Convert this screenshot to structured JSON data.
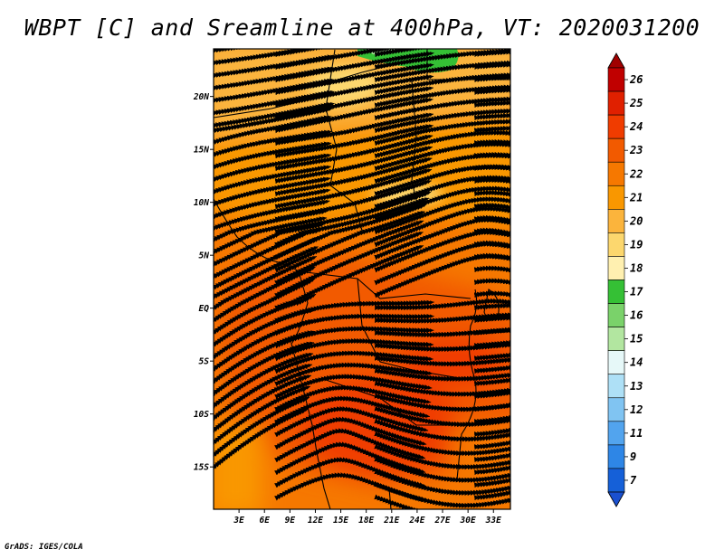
{
  "title": "WBPT [C] and Sreamline at 400hPa, VT: 2020031200",
  "credit": "GrADS: IGES/COLA",
  "map": {
    "lon_range": [
      0,
      35
    ],
    "lat_range": [
      -19,
      24.5
    ],
    "lon_ticks": [
      {
        "value": 3,
        "label": "3E"
      },
      {
        "value": 6,
        "label": "6E"
      },
      {
        "value": 9,
        "label": "9E"
      },
      {
        "value": 12,
        "label": "12E"
      },
      {
        "value": 15,
        "label": "15E"
      },
      {
        "value": 18,
        "label": "18E"
      },
      {
        "value": 21,
        "label": "21E"
      },
      {
        "value": 24,
        "label": "24E"
      },
      {
        "value": 27,
        "label": "27E"
      },
      {
        "value": 30,
        "label": "30E"
      },
      {
        "value": 33,
        "label": "33E"
      }
    ],
    "lat_ticks": [
      {
        "value": 20,
        "label": "20N"
      },
      {
        "value": 15,
        "label": "15N"
      },
      {
        "value": 10,
        "label": "10N"
      },
      {
        "value": 5,
        "label": "5N"
      },
      {
        "value": 0,
        "label": "EQ"
      },
      {
        "value": -5,
        "label": "5S"
      },
      {
        "value": -10,
        "label": "10S"
      },
      {
        "value": -15,
        "label": "15S"
      }
    ],
    "wbpt_field_c": [
      {
        "region": "northern band",
        "value": 20
      },
      {
        "region": "sahel band",
        "value": 21
      },
      {
        "region": "equatorial band",
        "value": 22
      },
      {
        "region": "congo basin",
        "value": 23
      },
      {
        "region": "southern core",
        "value": 24
      },
      {
        "region": "far north patch",
        "value": 17
      }
    ]
  },
  "colorbar": {
    "levels": [
      "26",
      "25",
      "24",
      "23",
      "22",
      "21",
      "20",
      "19",
      "18",
      "17",
      "16",
      "15",
      "14",
      "13",
      "12",
      "11",
      "9",
      "7"
    ],
    "colors": [
      "#c00000",
      "#e02000",
      "#f03c00",
      "#f25a00",
      "#f67800",
      "#f99700",
      "#fbb43c",
      "#fcd76e",
      "#fff0b0",
      "#35c035",
      "#7ad26a",
      "#b2e6a0",
      "#e6f8f8",
      "#aee0f6",
      "#80c4f2",
      "#52a4ee",
      "#2e86e6",
      "#1560d8"
    ],
    "top_arrow_color": "#a00000",
    "bottom_arrow_color": "#1a50d0"
  }
}
